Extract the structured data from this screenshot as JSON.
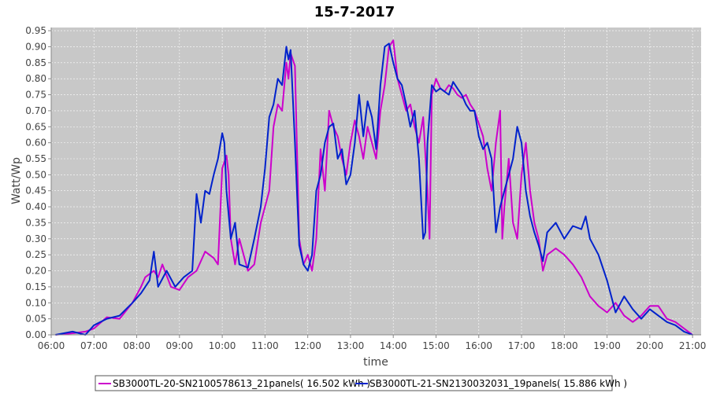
{
  "chart_data": {
    "type": "line",
    "title": "15-7-2017",
    "xlabel": "time",
    "ylabel": "Watt/Wp",
    "xlim": [
      6.0,
      21.2
    ],
    "ylim": [
      0,
      0.96
    ],
    "x_ticks": [
      "06:00",
      "07:00",
      "08:00",
      "09:00",
      "10:00",
      "11:00",
      "12:00",
      "13:00",
      "14:00",
      "15:00",
      "16:00",
      "17:00",
      "18:00",
      "19:00",
      "20:00",
      "21:00"
    ],
    "y_ticks": [
      "0.00",
      "0.05",
      "0.10",
      "0.15",
      "0.20",
      "0.25",
      "0.30",
      "0.35",
      "0.40",
      "0.45",
      "0.50",
      "0.55",
      "0.60",
      "0.65",
      "0.70",
      "0.75",
      "0.80",
      "0.85",
      "0.90",
      "0.95"
    ],
    "grid": true,
    "legend_position": "bottom",
    "plot_background": "#c8c8c8",
    "series": [
      {
        "name": "SB3000TL-20-SN2100578613_21panels( 16.502 kWh )",
        "color": "#cc00cc",
        "x": [
          6.1,
          6.5,
          6.8,
          7.0,
          7.3,
          7.6,
          7.9,
          8.1,
          8.2,
          8.4,
          8.5,
          8.6,
          8.8,
          9.0,
          9.2,
          9.4,
          9.6,
          9.8,
          9.9,
          10.0,
          10.1,
          10.15,
          10.2,
          10.3,
          10.4,
          10.6,
          10.75,
          10.9,
          11.0,
          11.1,
          11.2,
          11.3,
          11.4,
          11.5,
          11.55,
          11.6,
          11.7,
          11.8,
          11.9,
          12.0,
          12.1,
          12.2,
          12.3,
          12.4,
          12.5,
          12.6,
          12.7,
          12.8,
          12.9,
          13.0,
          13.1,
          13.2,
          13.3,
          13.4,
          13.5,
          13.6,
          13.7,
          13.8,
          13.9,
          14.0,
          14.1,
          14.2,
          14.3,
          14.4,
          14.5,
          14.6,
          14.7,
          14.8,
          14.85,
          14.9,
          15.0,
          15.1,
          15.2,
          15.3,
          15.4,
          15.5,
          15.6,
          15.7,
          15.8,
          15.9,
          16.0,
          16.1,
          16.2,
          16.3,
          16.4,
          16.5,
          16.55,
          16.6,
          16.7,
          16.8,
          16.9,
          17.0,
          17.1,
          17.2,
          17.3,
          17.4,
          17.5,
          17.6,
          17.8,
          18.0,
          18.2,
          18.4,
          18.6,
          18.8,
          19.0,
          19.2,
          19.4,
          19.6,
          19.8,
          20.0,
          20.2,
          20.4,
          20.6,
          20.8,
          21.0
        ],
        "y": [
          0.0,
          0.005,
          0.01,
          0.02,
          0.055,
          0.05,
          0.1,
          0.15,
          0.18,
          0.2,
          0.18,
          0.22,
          0.15,
          0.14,
          0.18,
          0.2,
          0.26,
          0.24,
          0.22,
          0.52,
          0.56,
          0.5,
          0.3,
          0.22,
          0.3,
          0.2,
          0.22,
          0.35,
          0.4,
          0.45,
          0.65,
          0.72,
          0.7,
          0.85,
          0.8,
          0.88,
          0.84,
          0.3,
          0.22,
          0.25,
          0.2,
          0.3,
          0.58,
          0.45,
          0.7,
          0.65,
          0.62,
          0.55,
          0.5,
          0.6,
          0.67,
          0.62,
          0.55,
          0.65,
          0.6,
          0.55,
          0.7,
          0.78,
          0.9,
          0.92,
          0.8,
          0.75,
          0.7,
          0.72,
          0.65,
          0.6,
          0.68,
          0.45,
          0.3,
          0.75,
          0.8,
          0.77,
          0.76,
          0.78,
          0.77,
          0.75,
          0.74,
          0.75,
          0.72,
          0.7,
          0.66,
          0.62,
          0.52,
          0.45,
          0.6,
          0.7,
          0.3,
          0.4,
          0.55,
          0.35,
          0.3,
          0.5,
          0.6,
          0.45,
          0.35,
          0.3,
          0.2,
          0.25,
          0.27,
          0.25,
          0.22,
          0.18,
          0.12,
          0.09,
          0.07,
          0.1,
          0.06,
          0.04,
          0.06,
          0.09,
          0.09,
          0.05,
          0.04,
          0.02,
          0.0
        ]
      },
      {
        "name": "SB3000TL-21-SN2130032031_19panels( 15.886 kWh )",
        "color": "#0022cc",
        "x": [
          6.1,
          6.5,
          6.8,
          7.0,
          7.3,
          7.6,
          7.9,
          8.1,
          8.3,
          8.4,
          8.5,
          8.7,
          8.9,
          9.1,
          9.3,
          9.4,
          9.5,
          9.6,
          9.7,
          9.8,
          9.9,
          10.0,
          10.05,
          10.1,
          10.2,
          10.3,
          10.4,
          10.6,
          10.75,
          10.9,
          11.0,
          11.1,
          11.2,
          11.3,
          11.4,
          11.5,
          11.55,
          11.6,
          11.7,
          11.8,
          11.9,
          12.0,
          12.1,
          12.2,
          12.3,
          12.4,
          12.5,
          12.6,
          12.7,
          12.8,
          12.9,
          13.0,
          13.1,
          13.2,
          13.3,
          13.4,
          13.5,
          13.6,
          13.7,
          13.8,
          13.9,
          14.0,
          14.1,
          14.2,
          14.3,
          14.4,
          14.5,
          14.6,
          14.7,
          14.75,
          14.8,
          14.9,
          15.0,
          15.1,
          15.2,
          15.3,
          15.4,
          15.5,
          15.6,
          15.7,
          15.8,
          15.9,
          16.0,
          16.1,
          16.2,
          16.3,
          16.4,
          16.5,
          16.6,
          16.7,
          16.8,
          16.9,
          17.0,
          17.1,
          17.2,
          17.3,
          17.4,
          17.5,
          17.6,
          17.8,
          18.0,
          18.2,
          18.4,
          18.5,
          18.6,
          18.8,
          19.0,
          19.2,
          19.4,
          19.6,
          19.8,
          20.0,
          20.2,
          20.4,
          20.6,
          20.8,
          21.0
        ],
        "y": [
          0.0,
          0.01,
          0.0,
          0.03,
          0.05,
          0.06,
          0.1,
          0.13,
          0.17,
          0.26,
          0.15,
          0.2,
          0.15,
          0.18,
          0.2,
          0.44,
          0.35,
          0.45,
          0.44,
          0.5,
          0.55,
          0.63,
          0.6,
          0.45,
          0.3,
          0.35,
          0.22,
          0.21,
          0.3,
          0.4,
          0.52,
          0.68,
          0.72,
          0.8,
          0.78,
          0.9,
          0.86,
          0.89,
          0.6,
          0.28,
          0.22,
          0.2,
          0.25,
          0.45,
          0.5,
          0.6,
          0.65,
          0.66,
          0.55,
          0.58,
          0.47,
          0.5,
          0.6,
          0.75,
          0.62,
          0.73,
          0.68,
          0.58,
          0.78,
          0.9,
          0.91,
          0.85,
          0.8,
          0.78,
          0.72,
          0.65,
          0.7,
          0.55,
          0.3,
          0.32,
          0.6,
          0.78,
          0.76,
          0.77,
          0.76,
          0.75,
          0.79,
          0.77,
          0.75,
          0.72,
          0.7,
          0.7,
          0.62,
          0.58,
          0.6,
          0.55,
          0.32,
          0.4,
          0.45,
          0.5,
          0.55,
          0.65,
          0.6,
          0.45,
          0.37,
          0.32,
          0.28,
          0.23,
          0.32,
          0.35,
          0.3,
          0.34,
          0.33,
          0.37,
          0.3,
          0.25,
          0.17,
          0.07,
          0.12,
          0.08,
          0.05,
          0.08,
          0.06,
          0.04,
          0.03,
          0.01,
          0.0
        ]
      }
    ]
  }
}
